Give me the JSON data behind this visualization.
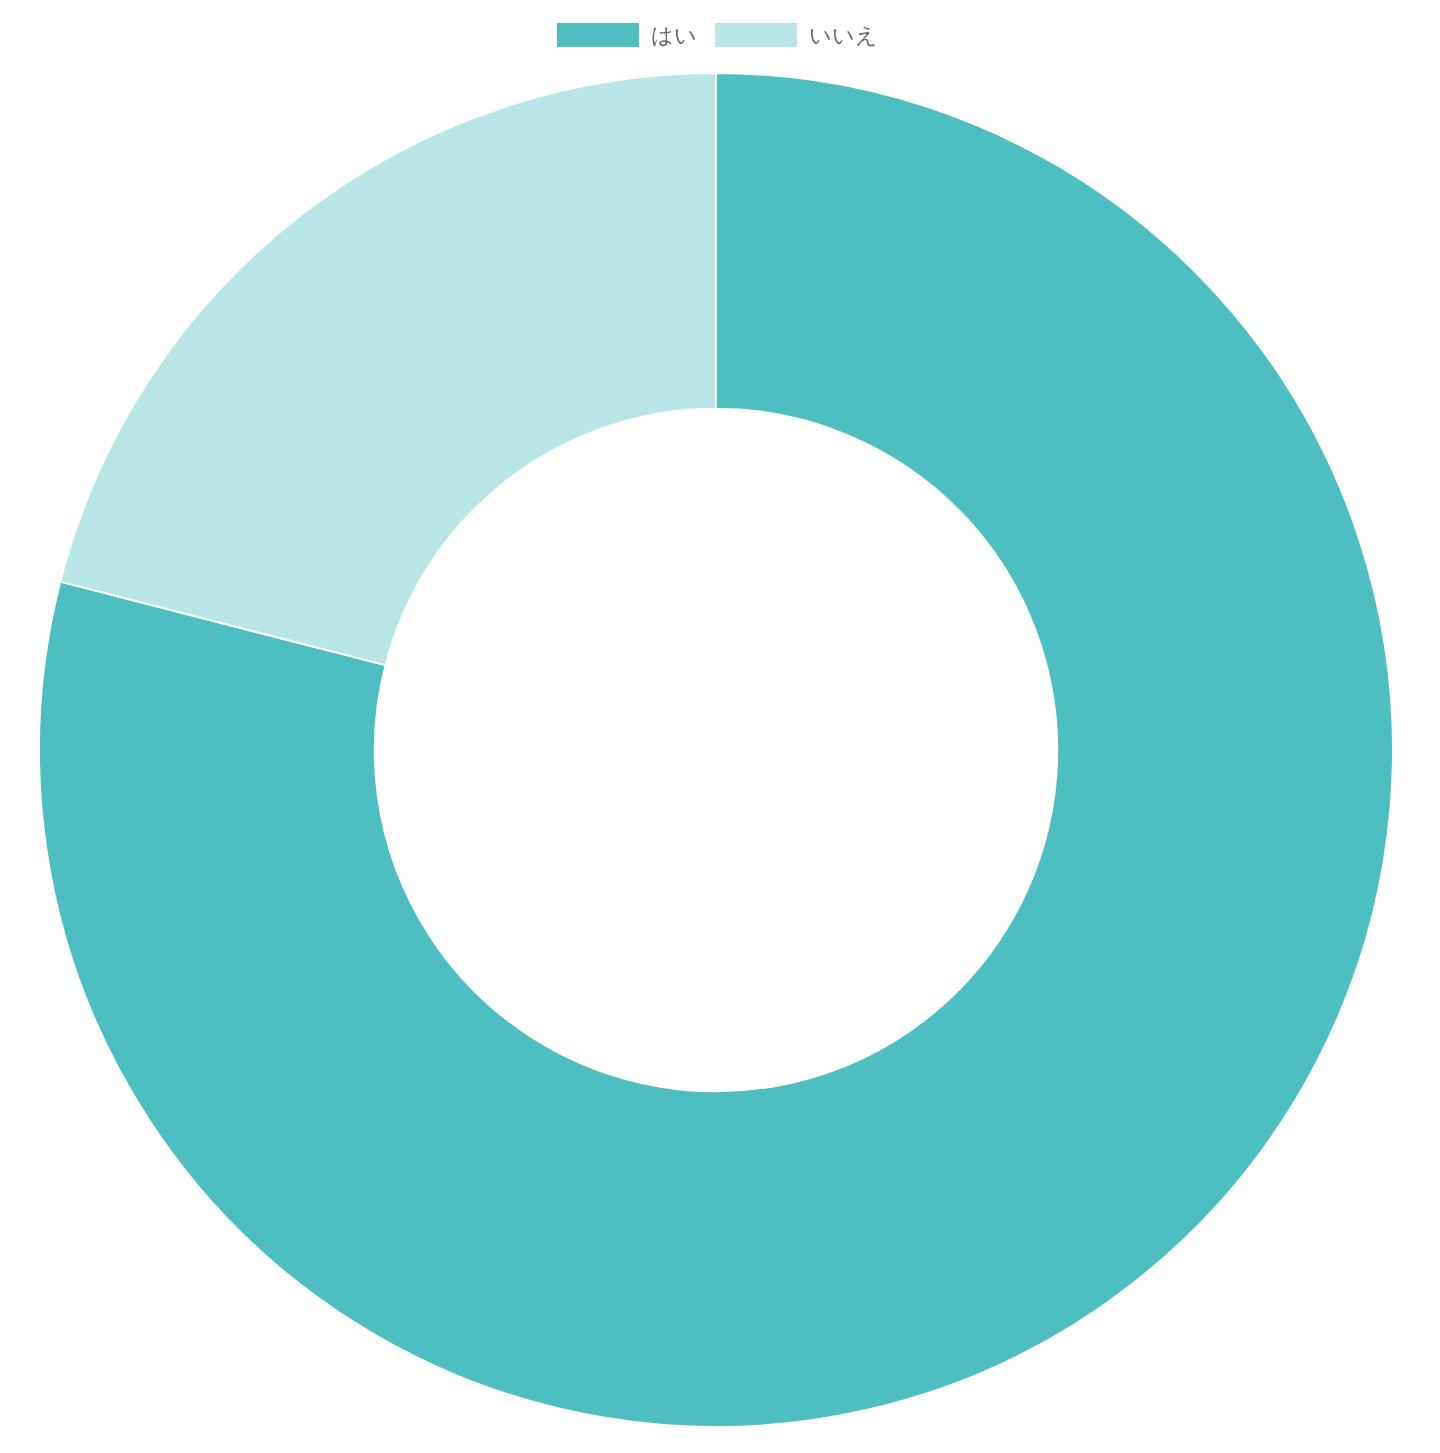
{
  "chart_data": {
    "type": "donut",
    "categories": [
      "はい",
      "いいえ"
    ],
    "values": [
      79,
      21
    ],
    "colors": [
      "#4dbfc0",
      "#b8e5e5"
    ],
    "legend": "top"
  }
}
